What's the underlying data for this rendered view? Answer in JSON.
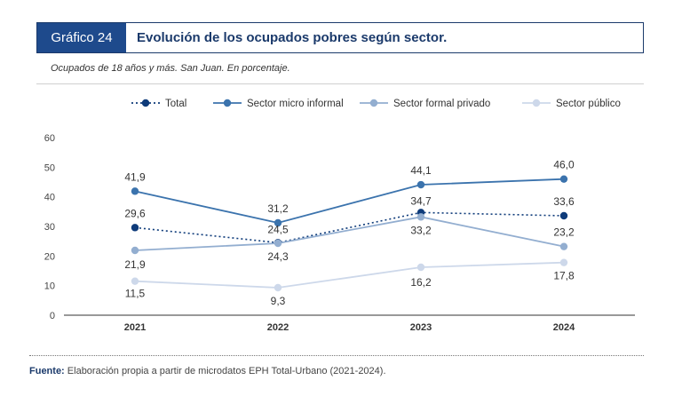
{
  "header": {
    "number": "Gráfico 24",
    "title": "Evolución de los ocupados pobres según sector."
  },
  "subtitle": "Ocupados de 18 años y más. San Juan. En porcentaje.",
  "footnote": {
    "label": "Fuente:",
    "text": " Elaboración propia a partir de microdatos EPH Total-Urbano (2021-2024)."
  },
  "chart_data": {
    "type": "line",
    "categories": [
      "2021",
      "2022",
      "2023",
      "2024"
    ],
    "ylim": [
      0,
      60
    ],
    "yticks": [
      "0",
      "10",
      "20",
      "30",
      "40",
      "50",
      "60"
    ],
    "legend_position": "top",
    "series": [
      {
        "name": "Total",
        "values": [
          29.6,
          24.5,
          34.7,
          33.6
        ],
        "labels": [
          "29,6",
          "24,5",
          "34,7",
          "33,6"
        ],
        "color": "#0e3b7a",
        "dashed": true
      },
      {
        "name": "Sector micro informal",
        "values": [
          41.9,
          31.2,
          44.1,
          46.0
        ],
        "labels": [
          "41,9",
          "31,2",
          "44,1",
          "46,0"
        ],
        "color": "#3b73ad",
        "dashed": false
      },
      {
        "name": "Sector formal privado",
        "values": [
          21.9,
          24.3,
          33.2,
          23.2
        ],
        "labels": [
          "21,9",
          "24,3",
          "33,2",
          "23,2"
        ],
        "color": "#93aed0",
        "dashed": false
      },
      {
        "name": "Sector público",
        "values": [
          11.5,
          9.3,
          16.2,
          17.8
        ],
        "labels": [
          "11,5",
          "9,3",
          "16,2",
          "17,8"
        ],
        "color": "#cdd8ea",
        "dashed": false
      }
    ]
  }
}
